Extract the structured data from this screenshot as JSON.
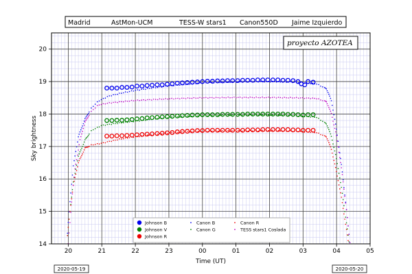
{
  "header": {
    "location": "Madrid",
    "organization": "AstMon-UCM",
    "instrument": "TESS-W stars1",
    "camera": "Canon550D",
    "author": "Jaime Izquierdo"
  },
  "brand": "proyecto   AZOTEA",
  "dates": {
    "start": "2020-05-19",
    "end": "2020-05-20"
  },
  "colors": {
    "johnson_b": "#0000ee",
    "johnson_v": "#008000",
    "johnson_r": "#ee0000",
    "tess": "#c000c0"
  },
  "chart_data": {
    "type": "scatter",
    "xlabel": "Time (UT)",
    "ylabel": "Sky brightness",
    "x_ticks": [
      "20",
      "21",
      "22",
      "23",
      "00",
      "01",
      "02",
      "03",
      "04",
      "05"
    ],
    "y_ticks": [
      "14",
      "15",
      "16",
      "17",
      "18",
      "19",
      "20"
    ],
    "xlim": [
      "19.5",
      "05"
    ],
    "ylim": [
      14,
      20.5
    ],
    "grid": true,
    "legend_position": "bottom-center",
    "series": [
      {
        "name": "Johnson B",
        "marker": "open-circle",
        "color": "#0000ee",
        "points": [
          [
            21.15,
            18.8
          ],
          [
            21.3,
            18.8
          ],
          [
            21.45,
            18.8
          ],
          [
            21.6,
            18.82
          ],
          [
            21.75,
            18.82
          ],
          [
            21.9,
            18.83
          ],
          [
            22.05,
            18.86
          ],
          [
            22.2,
            18.86
          ],
          [
            22.35,
            18.88
          ],
          [
            22.5,
            18.89
          ],
          [
            22.65,
            18.9
          ],
          [
            22.8,
            18.9
          ],
          [
            22.95,
            18.92
          ],
          [
            23.1,
            18.93
          ],
          [
            23.25,
            18.95
          ],
          [
            23.4,
            18.96
          ],
          [
            23.55,
            18.97
          ],
          [
            23.7,
            18.98
          ],
          [
            23.85,
            18.99
          ],
          [
            24.0,
            19.0
          ],
          [
            24.15,
            19.01
          ],
          [
            24.3,
            19.01
          ],
          [
            24.45,
            19.02
          ],
          [
            24.6,
            19.02
          ],
          [
            24.75,
            19.03
          ],
          [
            24.9,
            19.03
          ],
          [
            25.05,
            19.03
          ],
          [
            25.2,
            19.04
          ],
          [
            25.35,
            19.04
          ],
          [
            25.5,
            19.04
          ],
          [
            25.65,
            19.05
          ],
          [
            25.8,
            19.05
          ],
          [
            25.95,
            19.05
          ],
          [
            26.1,
            19.05
          ],
          [
            26.25,
            19.05
          ],
          [
            26.4,
            19.04
          ],
          [
            26.55,
            19.04
          ],
          [
            26.7,
            19.03
          ],
          [
            26.85,
            19.0
          ],
          [
            26.95,
            18.93
          ],
          [
            27.05,
            18.9
          ],
          [
            27.15,
            19.0
          ],
          [
            27.3,
            18.98
          ]
        ]
      },
      {
        "name": "Johnson V",
        "marker": "filled-circle",
        "color": "#008000",
        "points": [
          [
            21.15,
            17.8
          ],
          [
            21.3,
            17.8
          ],
          [
            21.45,
            17.81
          ],
          [
            21.6,
            17.81
          ],
          [
            21.75,
            17.82
          ],
          [
            21.9,
            17.83
          ],
          [
            22.05,
            17.85
          ],
          [
            22.2,
            17.86
          ],
          [
            22.35,
            17.88
          ],
          [
            22.5,
            17.89
          ],
          [
            22.65,
            17.9
          ],
          [
            22.8,
            17.91
          ],
          [
            22.95,
            17.92
          ],
          [
            23.1,
            17.93
          ],
          [
            23.25,
            17.94
          ],
          [
            23.4,
            17.95
          ],
          [
            23.55,
            17.96
          ],
          [
            23.7,
            17.97
          ],
          [
            23.85,
            17.97
          ],
          [
            24.0,
            17.98
          ],
          [
            24.15,
            17.98
          ],
          [
            24.3,
            17.98
          ],
          [
            24.45,
            17.98
          ],
          [
            24.6,
            17.99
          ],
          [
            24.75,
            17.99
          ],
          [
            24.9,
            17.99
          ],
          [
            25.05,
            17.99
          ],
          [
            25.2,
            17.99
          ],
          [
            25.35,
            18.0
          ],
          [
            25.5,
            18.0
          ],
          [
            25.65,
            18.0
          ],
          [
            25.8,
            18.0
          ],
          [
            25.95,
            18.0
          ],
          [
            26.1,
            18.0
          ],
          [
            26.25,
            18.0
          ],
          [
            26.4,
            18.0
          ],
          [
            26.55,
            17.99
          ],
          [
            26.7,
            17.99
          ],
          [
            26.85,
            17.98
          ],
          [
            27.0,
            17.97
          ],
          [
            27.15,
            17.98
          ],
          [
            27.3,
            17.98
          ]
        ]
      },
      {
        "name": "Johnson R",
        "marker": "filled-circle",
        "color": "#ee0000",
        "points": [
          [
            21.15,
            17.32
          ],
          [
            21.3,
            17.32
          ],
          [
            21.45,
            17.33
          ],
          [
            21.6,
            17.33
          ],
          [
            21.75,
            17.34
          ],
          [
            21.9,
            17.35
          ],
          [
            22.05,
            17.36
          ],
          [
            22.2,
            17.37
          ],
          [
            22.35,
            17.38
          ],
          [
            22.5,
            17.39
          ],
          [
            22.65,
            17.4
          ],
          [
            22.8,
            17.41
          ],
          [
            22.95,
            17.42
          ],
          [
            23.1,
            17.43
          ],
          [
            23.25,
            17.45
          ],
          [
            23.4,
            17.46
          ],
          [
            23.55,
            17.47
          ],
          [
            23.7,
            17.48
          ],
          [
            23.85,
            17.49
          ],
          [
            24.0,
            17.49
          ],
          [
            24.15,
            17.5
          ],
          [
            24.3,
            17.5
          ],
          [
            24.45,
            17.5
          ],
          [
            24.6,
            17.5
          ],
          [
            24.75,
            17.5
          ],
          [
            24.9,
            17.5
          ],
          [
            25.05,
            17.5
          ],
          [
            25.2,
            17.5
          ],
          [
            25.35,
            17.51
          ],
          [
            25.5,
            17.51
          ],
          [
            25.65,
            17.51
          ],
          [
            25.8,
            17.52
          ],
          [
            25.95,
            17.52
          ],
          [
            26.1,
            17.52
          ],
          [
            26.25,
            17.52
          ],
          [
            26.4,
            17.52
          ],
          [
            26.55,
            17.52
          ],
          [
            26.7,
            17.51
          ],
          [
            26.85,
            17.51
          ],
          [
            27.0,
            17.5
          ],
          [
            27.15,
            17.5
          ],
          [
            27.3,
            17.5
          ]
        ]
      },
      {
        "name": "Canon B",
        "marker": "dot",
        "color": "#0000ee",
        "profile": [
          [
            19.95,
            14.0
          ],
          [
            20.05,
            15.3
          ],
          [
            20.15,
            16.4
          ],
          [
            20.3,
            17.3
          ],
          [
            20.5,
            17.85
          ],
          [
            20.7,
            18.2
          ],
          [
            20.9,
            18.4
          ],
          [
            21.2,
            18.55
          ],
          [
            21.6,
            18.65
          ],
          [
            22.0,
            18.73
          ],
          [
            23.0,
            18.87
          ],
          [
            24.0,
            18.96
          ],
          [
            25.0,
            18.99
          ],
          [
            26.0,
            19.0
          ],
          [
            26.8,
            18.98
          ],
          [
            27.4,
            18.93
          ],
          [
            27.7,
            18.78
          ],
          [
            27.85,
            18.4
          ],
          [
            28.0,
            17.5
          ],
          [
            28.15,
            16.4
          ],
          [
            28.3,
            15.0
          ],
          [
            28.4,
            14.0
          ]
        ]
      },
      {
        "name": "Canon G",
        "marker": "dot",
        "color": "#008000",
        "profile": [
          [
            19.95,
            14.0
          ],
          [
            20.05,
            15.0
          ],
          [
            20.15,
            15.9
          ],
          [
            20.3,
            16.7
          ],
          [
            20.5,
            17.2
          ],
          [
            20.7,
            17.5
          ],
          [
            21.0,
            17.65
          ],
          [
            21.5,
            17.72
          ],
          [
            22.0,
            17.78
          ],
          [
            23.0,
            17.9
          ],
          [
            24.0,
            17.95
          ],
          [
            25.0,
            17.97
          ],
          [
            26.0,
            17.97
          ],
          [
            26.8,
            17.95
          ],
          [
            27.4,
            17.9
          ],
          [
            27.7,
            17.7
          ],
          [
            27.85,
            17.3
          ],
          [
            28.0,
            16.6
          ],
          [
            28.15,
            15.7
          ],
          [
            28.3,
            14.6
          ],
          [
            28.38,
            14.0
          ]
        ]
      },
      {
        "name": "Canon R",
        "marker": "dot",
        "color": "#ee0000",
        "profile": [
          [
            19.95,
            14.0
          ],
          [
            20.05,
            15.0
          ],
          [
            20.15,
            15.8
          ],
          [
            20.3,
            16.5
          ],
          [
            20.5,
            16.95
          ],
          [
            20.7,
            17.05
          ],
          [
            21.0,
            17.1
          ],
          [
            21.5,
            17.22
          ],
          [
            22.0,
            17.3
          ],
          [
            23.0,
            17.42
          ],
          [
            24.0,
            17.47
          ],
          [
            25.0,
            17.48
          ],
          [
            26.0,
            17.49
          ],
          [
            26.8,
            17.47
          ],
          [
            27.4,
            17.43
          ],
          [
            27.7,
            17.3
          ],
          [
            27.85,
            16.9
          ],
          [
            28.0,
            16.2
          ],
          [
            28.15,
            15.4
          ],
          [
            28.3,
            14.4
          ],
          [
            28.36,
            14.0
          ]
        ]
      },
      {
        "name": "TESS stars1 Coslada",
        "marker": "dot",
        "color": "#c000c0",
        "profile": [
          [
            20.0,
            14.0
          ],
          [
            20.1,
            15.3
          ],
          [
            20.2,
            16.3
          ],
          [
            20.35,
            17.2
          ],
          [
            20.5,
            17.75
          ],
          [
            20.7,
            18.1
          ],
          [
            20.9,
            18.28
          ],
          [
            21.2,
            18.34
          ],
          [
            21.6,
            18.38
          ],
          [
            22.0,
            18.42
          ],
          [
            23.0,
            18.47
          ],
          [
            24.0,
            18.5
          ],
          [
            25.0,
            18.51
          ],
          [
            26.0,
            18.51
          ],
          [
            26.8,
            18.5
          ],
          [
            27.4,
            18.48
          ],
          [
            27.7,
            18.38
          ],
          [
            27.85,
            18.0
          ],
          [
            28.0,
            17.3
          ],
          [
            28.15,
            16.3
          ],
          [
            28.3,
            15.0
          ],
          [
            28.4,
            14.0
          ]
        ]
      }
    ]
  }
}
